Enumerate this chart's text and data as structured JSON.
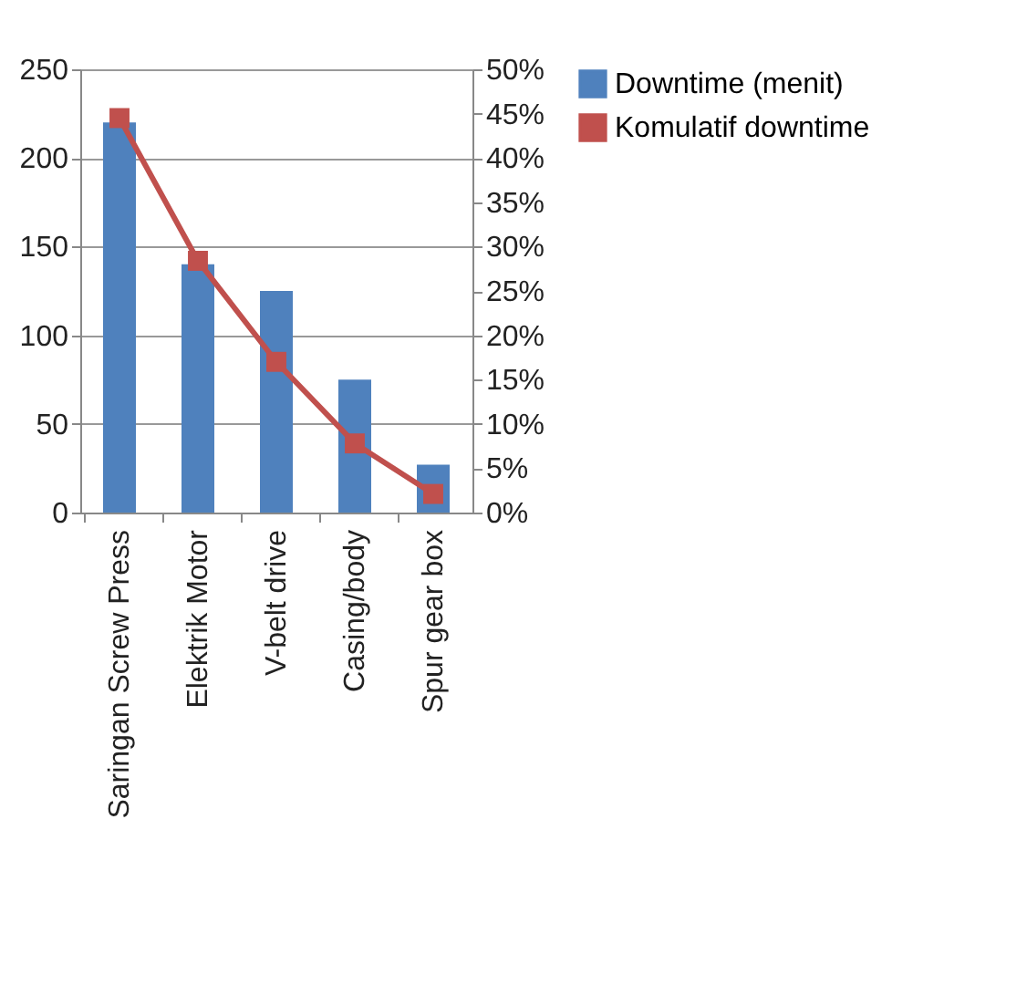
{
  "chart_data": {
    "type": "bar",
    "categories": [
      "Saringan Screw Press",
      "Elektrik Motor",
      "V-belt drive",
      "Casing/body",
      "Spur gear box"
    ],
    "series": [
      {
        "name": "Downtime (menit)",
        "color": "#4f81bd",
        "values": [
          220,
          140,
          125,
          75,
          27
        ]
      },
      {
        "name": "Komulatif downtime",
        "type": "line",
        "axis": "y2",
        "color": "#c0504d",
        "marker": "square",
        "values": [
          44.5,
          28.4,
          17.0,
          7.8,
          2.1
        ]
      }
    ],
    "ylim": [
      0,
      250
    ],
    "yticks": [
      0,
      50,
      100,
      150,
      200,
      250
    ],
    "y2lim": [
      0,
      50
    ],
    "y2ticks": [
      {
        "value": 0,
        "label": "0%"
      },
      {
        "value": 5,
        "label": "5%"
      },
      {
        "value": 10,
        "label": "10%"
      },
      {
        "value": 15,
        "label": "15%"
      },
      {
        "value": 20,
        "label": "20%"
      },
      {
        "value": 25,
        "label": "25%"
      },
      {
        "value": 30,
        "label": "30%"
      },
      {
        "value": 35,
        "label": "35%"
      },
      {
        "value": 40,
        "label": "40%"
      },
      {
        "value": 45,
        "label": "45%"
      },
      {
        "value": 50,
        "label": "50%"
      }
    ],
    "grid": "y",
    "legend": "right"
  }
}
